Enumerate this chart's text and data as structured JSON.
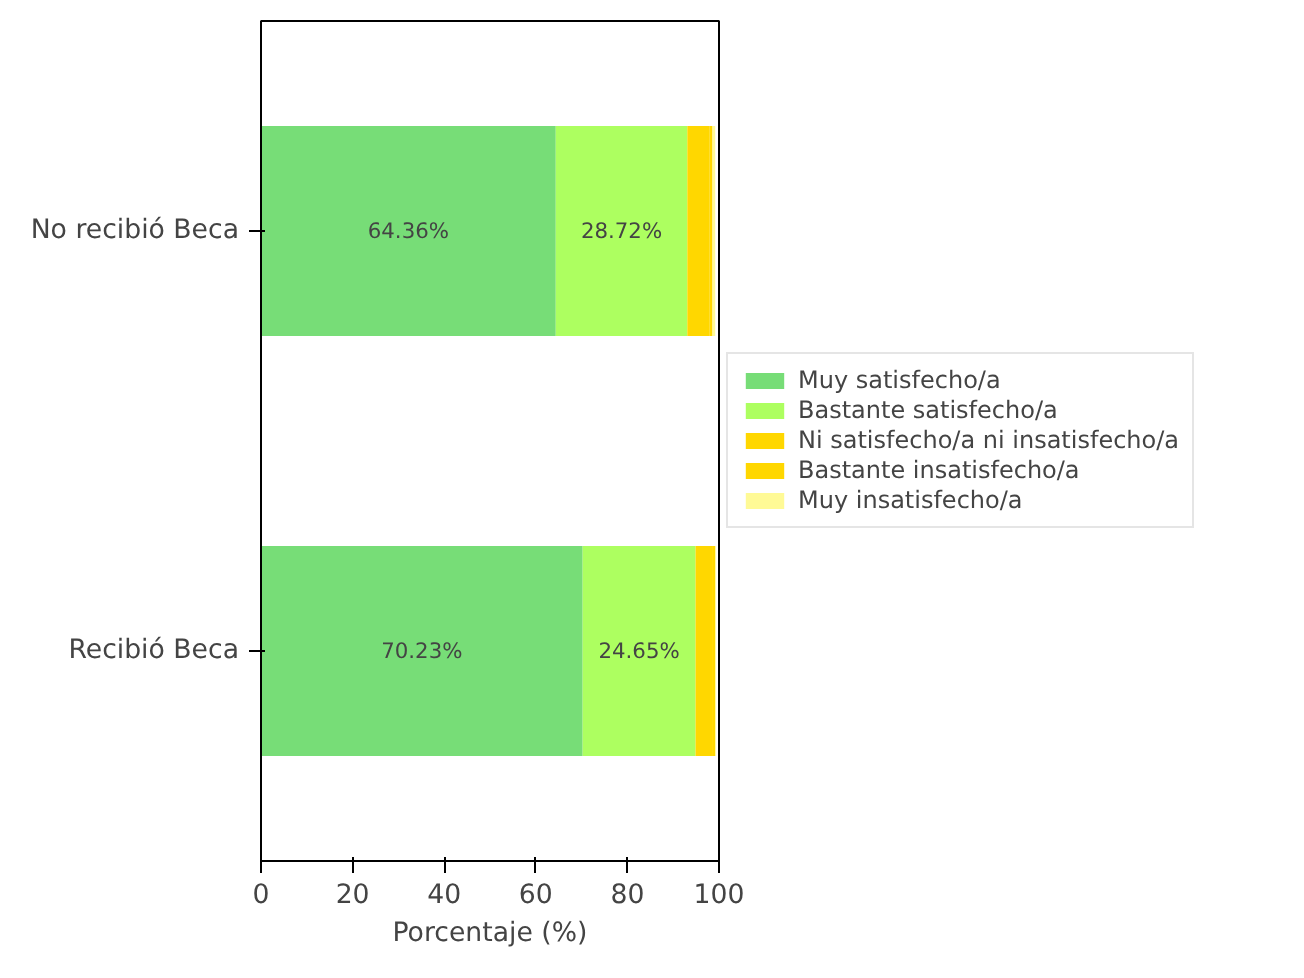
{
  "chart_data": {
    "type": "bar",
    "orientation": "horizontal",
    "stacked": true,
    "xlabel": "Porcentaje (%)",
    "categories": [
      "No recibió Beca",
      "Recibió Beca"
    ],
    "xlim": [
      0,
      100
    ],
    "xticks": [
      0,
      20,
      40,
      60,
      80,
      100
    ],
    "legend": "right",
    "grid": false,
    "series": [
      {
        "name": "Muy satisfecho/a",
        "color": "#77dd77",
        "values": [
          64.36,
          70.23
        ],
        "value_labels": [
          "64.36%",
          "70.23%"
        ]
      },
      {
        "name": "Bastante satisfecho/a",
        "color": "#adff60",
        "values": [
          28.72,
          24.65
        ],
        "value_labels": [
          "28.72%",
          "24.65%"
        ]
      },
      {
        "name": "Ni satisfecho/a ni insatisfecho/a",
        "color": "#ffd700",
        "values": [
          4.9,
          3.8
        ]
      },
      {
        "name": "Bastante insatisfecho/a",
        "color": "#ffd700",
        "values": [
          0.6,
          0.5
        ]
      },
      {
        "name": "Muy insatisfecho/a",
        "color": "#fffa96",
        "values": [
          0.6,
          0.2
        ]
      }
    ]
  }
}
